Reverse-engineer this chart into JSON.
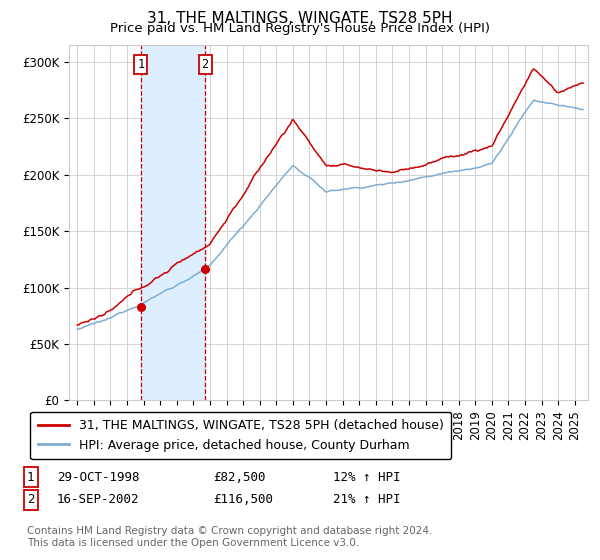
{
  "title": "31, THE MALTINGS, WINGATE, TS28 5PH",
  "subtitle": "Price paid vs. HM Land Registry's House Price Index (HPI)",
  "ylabel_ticks": [
    "£0",
    "£50K",
    "£100K",
    "£150K",
    "£200K",
    "£250K",
    "£300K"
  ],
  "ytick_values": [
    0,
    50000,
    100000,
    150000,
    200000,
    250000,
    300000
  ],
  "ylim": [
    0,
    315000
  ],
  "xlim_start": 1994.5,
  "xlim_end": 2025.8,
  "sale1": {
    "label": "1",
    "date": "29-OCT-1998",
    "price": 82500,
    "pct": "12%",
    "x": 1998.83
  },
  "sale2": {
    "label": "2",
    "date": "16-SEP-2002",
    "price": 116500,
    "pct": "21%",
    "x": 2002.71
  },
  "legend_line1": "31, THE MALTINGS, WINGATE, TS28 5PH (detached house)",
  "legend_line2": "HPI: Average price, detached house, County Durham",
  "footnote": "Contains HM Land Registry data © Crown copyright and database right 2024.\nThis data is licensed under the Open Government Licence v3.0.",
  "red_color": "#cc0000",
  "blue_color": "#7eadd4",
  "shade_color": "#ddeeff",
  "grid_color": "#cccccc",
  "background_color": "#ffffff",
  "title_fontsize": 11,
  "subtitle_fontsize": 9.5,
  "tick_fontsize": 8.5,
  "legend_fontsize": 9,
  "footnote_fontsize": 7.5,
  "table_fontsize": 9
}
